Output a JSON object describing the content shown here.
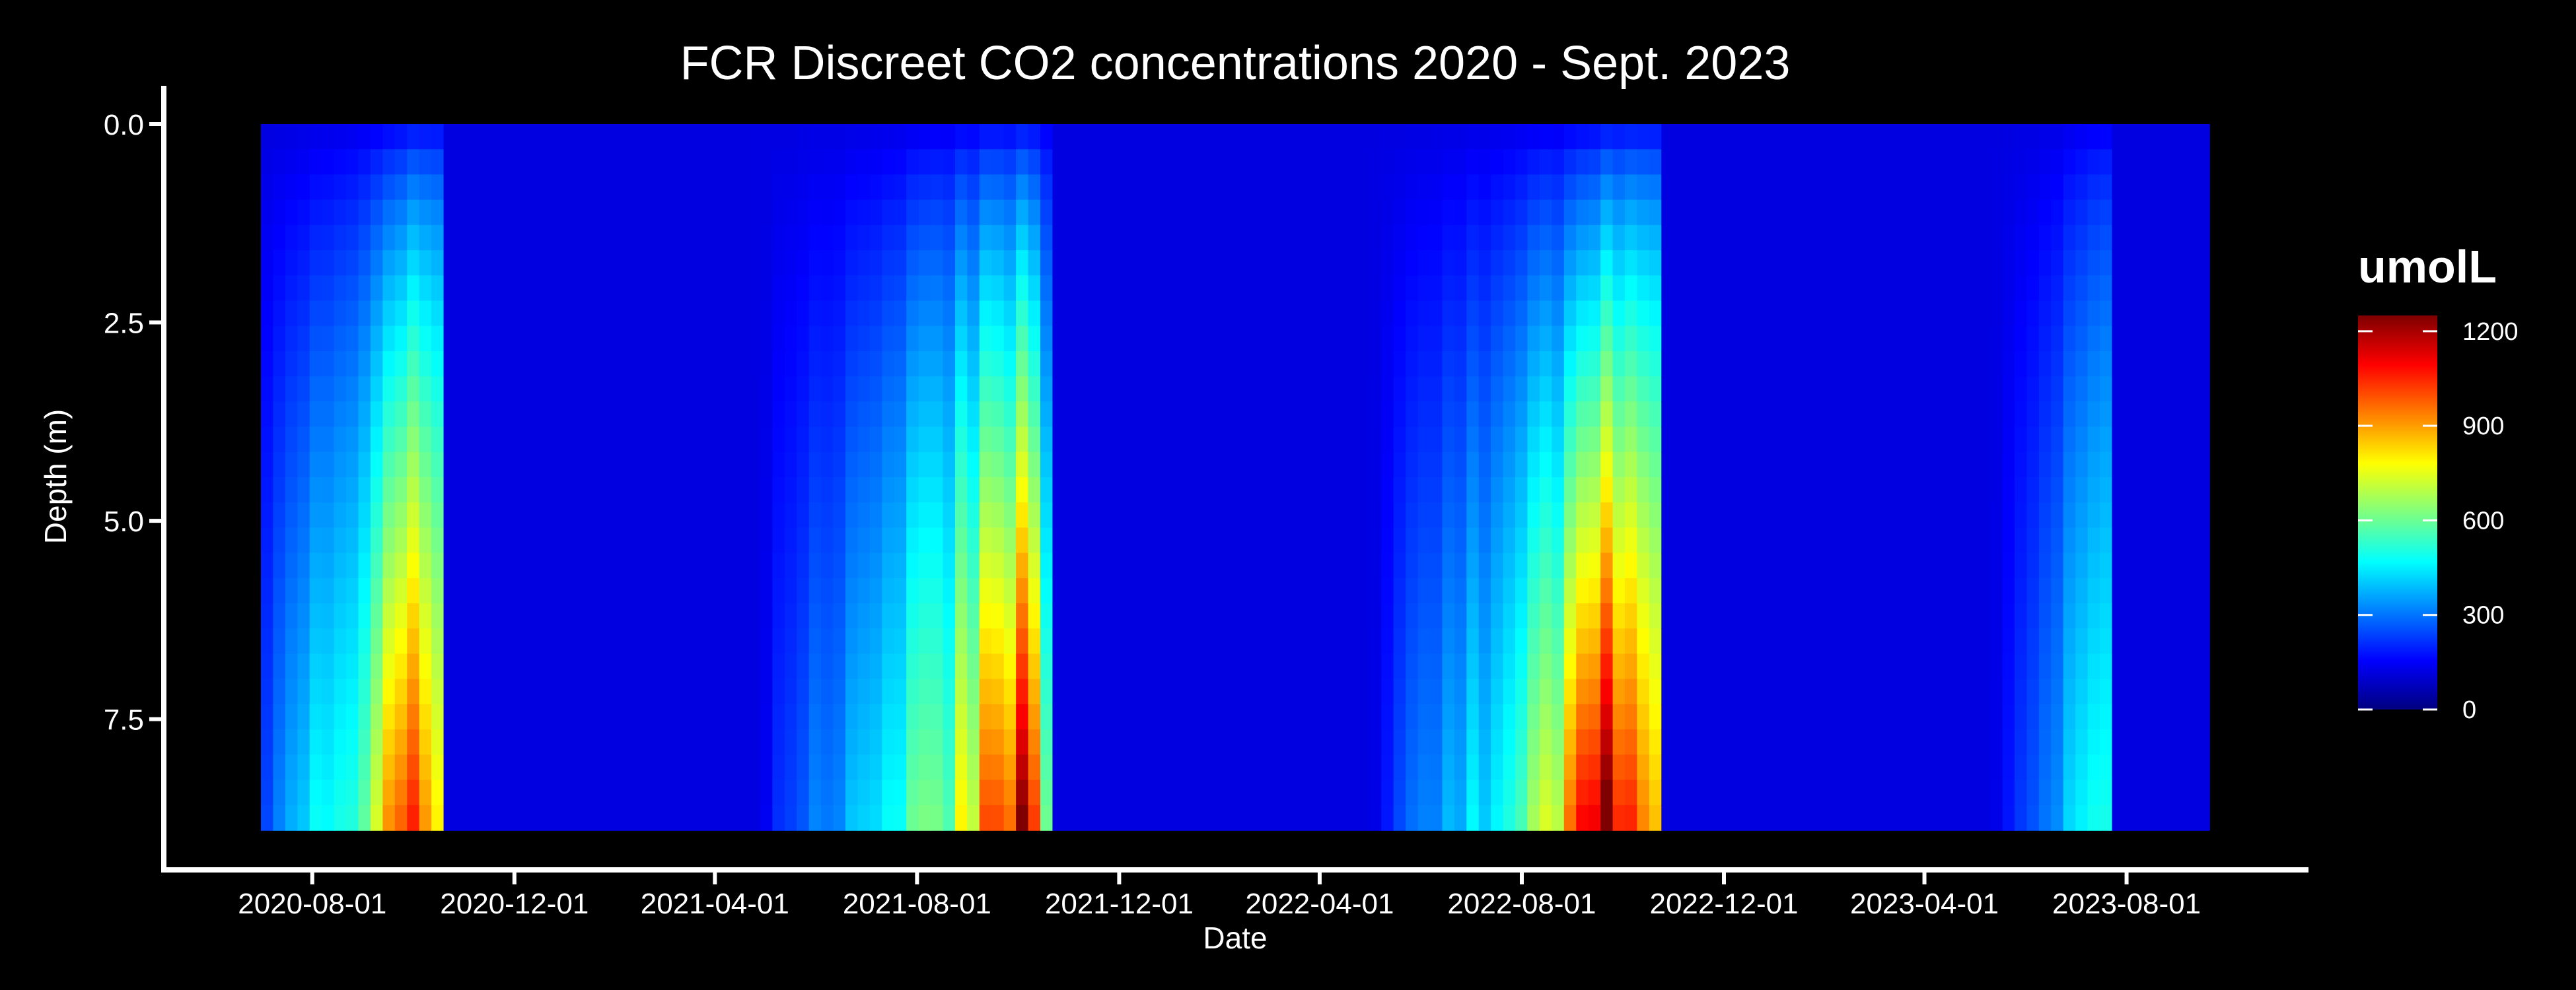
{
  "chart_data": {
    "type": "heatmap",
    "title": "FCR Discreet CO2 concentrations 2020 - Sept. 2023",
    "xlabel": "Date",
    "ylabel": "Depth (m)",
    "x_range": [
      "2020-07-01",
      "2023-09-20"
    ],
    "y_range": [
      0.0,
      8.9
    ],
    "y_reversed": true,
    "x_ticks": [
      "2020-08-01",
      "2020-12-01",
      "2021-04-01",
      "2021-08-01",
      "2021-12-01",
      "2022-04-01",
      "2022-08-01",
      "2022-12-01",
      "2023-04-01",
      "2023-08-01"
    ],
    "y_ticks": [
      0.0,
      2.5,
      5.0,
      7.5
    ],
    "y_tick_labels": [
      "0.0",
      "2.5",
      "5.0",
      "7.5"
    ],
    "colorbar": {
      "title": "umolL",
      "range": [
        0,
        1250
      ],
      "ticks": [
        0,
        300,
        600,
        900,
        1200
      ],
      "colormap": "jet",
      "stops": [
        "#00007f",
        "#0000ff",
        "#007fff",
        "#00ffff",
        "#7fff7f",
        "#ffff00",
        "#ff7f00",
        "#ff0000",
        "#7f0000"
      ]
    },
    "background_value": 120,
    "seasonal_events": [
      {
        "start": "2020-07-01",
        "end": "2020-10-15",
        "peak_date": "2020-09-25",
        "peak_value": 1150,
        "bottom_value": 850
      },
      {
        "start": "2021-05-10",
        "end": "2021-10-15",
        "peak_date": "2021-10-01",
        "peak_value": 1200,
        "bottom_value": 800
      },
      {
        "start": "2022-05-15",
        "end": "2022-10-20",
        "peak_date": "2022-09-15",
        "peak_value": 1250,
        "bottom_value": 850
      },
      {
        "start": "2023-05-20",
        "end": "2023-07-20",
        "peak_date": "2023-07-10",
        "peak_value": 550,
        "bottom_value": 500
      }
    ],
    "grid": false,
    "legend_position": "right"
  }
}
